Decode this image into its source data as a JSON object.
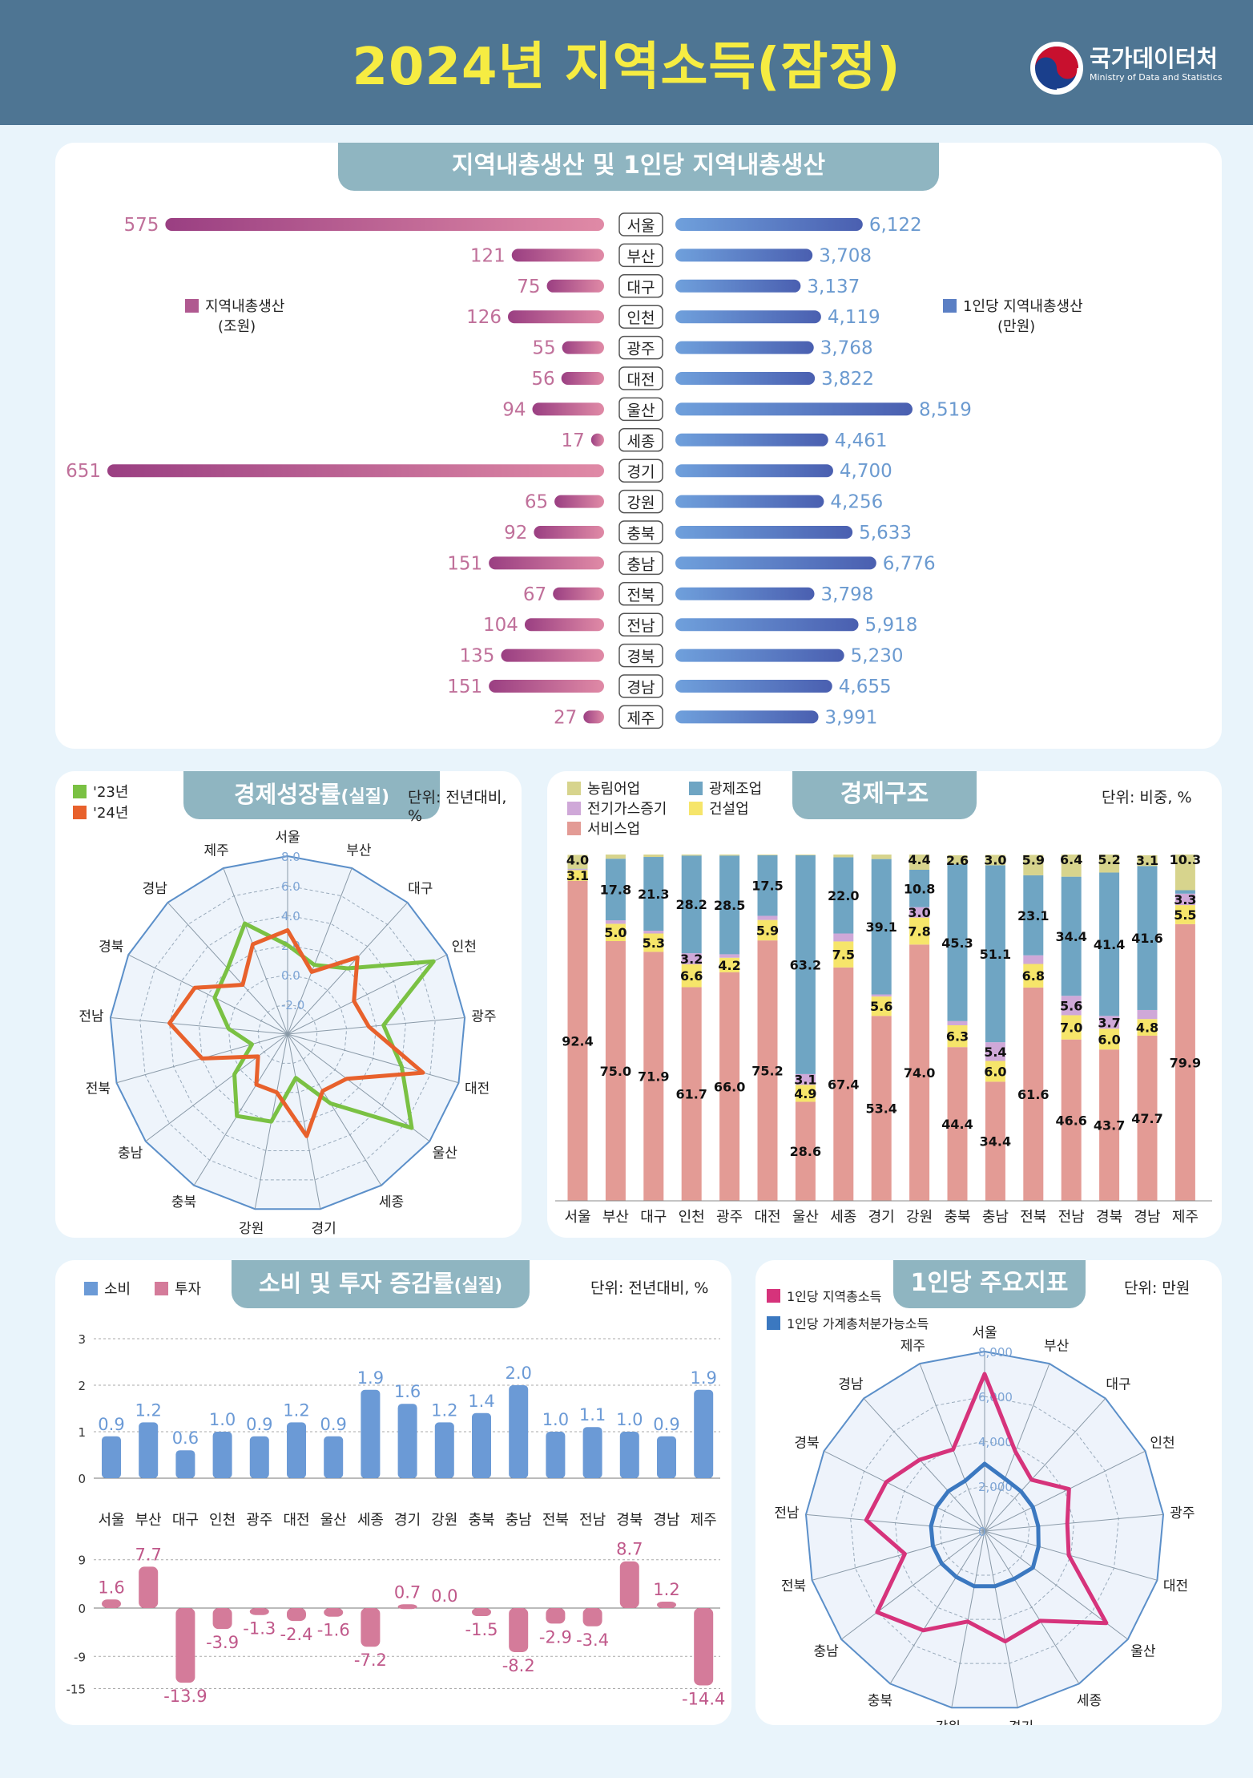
{
  "header": {
    "title": "2024년 지역소득(잠정)",
    "logo_name": "국가데이터처",
    "logo_sub": "Ministry of Data and Statistics"
  },
  "colors": {
    "header_bg": "#4e7593",
    "title": "#f6ec42",
    "pill": "#8fb5c1",
    "grdp": "#b05990",
    "grdp_text": "#c0709a",
    "per_capita": "#5b7fc4",
    "per_capita_text": "#6b9ad0",
    "green": "#7ac143",
    "orange": "#e8612c",
    "consumption": "#6b9ad6",
    "investment": "#d47b9a",
    "magenta": "#d6337b",
    "blue": "#3b78c0"
  },
  "panels": {
    "grdp": {
      "title": "지역내총생산 및 1인당 지역내총생산",
      "legend_left_1": "지역내총생산",
      "legend_left_2": "(조원)",
      "legend_right_1": "1인당 지역내총생산",
      "legend_right_2": "(만원)"
    },
    "growth": {
      "title": "경제성장률",
      "title_sub": "(실질)",
      "unit": "단위: 전년대비, %",
      "legend": [
        "'23년",
        "'24년"
      ]
    },
    "structure": {
      "title": "경제구조",
      "unit": "단위: 비중, %",
      "legend": [
        "농림어업",
        "광제조업",
        "전기가스증기",
        "건설업",
        "서비스업"
      ]
    },
    "cons": {
      "title": "소비 및 투자 증감률",
      "title_sub": "(실질)",
      "unit": "단위: 전년대비, %",
      "legend": [
        "소비",
        "투자"
      ]
    },
    "percap": {
      "title": "1인당 주요지표",
      "unit": "단위: 만원",
      "legend": [
        "1인당 지역총소득",
        "1인당 가계총처분가능소득"
      ]
    }
  },
  "chart_data": [
    {
      "type": "bar",
      "title": "지역내총생산 및 1인당 지역내총생산",
      "categories": [
        "서울",
        "부산",
        "대구",
        "인천",
        "광주",
        "대전",
        "울산",
        "세종",
        "경기",
        "강원",
        "충북",
        "충남",
        "전북",
        "전남",
        "경북",
        "경남",
        "제주"
      ],
      "series": [
        {
          "name": "지역내총생산 (조원)",
          "values": [
            575,
            121,
            75,
            126,
            55,
            56,
            94,
            17,
            651,
            65,
            92,
            151,
            67,
            104,
            135,
            151,
            27
          ]
        },
        {
          "name": "1인당 지역내총생산 (만원)",
          "values": [
            6122,
            3708,
            3137,
            4119,
            3768,
            3822,
            8519,
            4461,
            4700,
            4256,
            5633,
            6776,
            3798,
            5918,
            5230,
            4655,
            3991
          ]
        }
      ]
    },
    {
      "type": "radar",
      "title": "경제성장률",
      "categories": [
        "서울",
        "부산",
        "대구",
        "인천",
        "광주",
        "대전",
        "울산",
        "세종",
        "경기",
        "강원",
        "충북",
        "충남",
        "전북",
        "전남",
        "경북",
        "경남",
        "제주"
      ],
      "ticks": [
        "8.0",
        "6.0",
        "4.0",
        "2.0",
        "0.0",
        "-2.0"
      ],
      "range": [
        -4,
        8
      ],
      "series": [
        {
          "name": "'23년",
          "values": [
            2.0,
            1.0,
            2.0,
            7.0,
            2.5,
            4.0,
            6.5,
            1.5,
            -1.0,
            2.0,
            2.5,
            0.5,
            -1.5,
            0.0,
            1.5,
            2.0,
            4.0
          ]
        },
        {
          "name": "'24년",
          "values": [
            3.0,
            0.5,
            3.0,
            1.0,
            1.5,
            5.5,
            1.0,
            0.5,
            3.0,
            0.0,
            0.0,
            -1.5,
            2.0,
            4.0,
            3.0,
            0.5,
            2.5
          ]
        }
      ]
    },
    {
      "type": "bar",
      "stacked": true,
      "title": "경제구조",
      "categories": [
        "서울",
        "부산",
        "대구",
        "인천",
        "광주",
        "대전",
        "울산",
        "세종",
        "경기",
        "강원",
        "충북",
        "충남",
        "전북",
        "전남",
        "경북",
        "경남",
        "제주"
      ],
      "series": [
        {
          "name": "서비스업",
          "values": [
            92.4,
            75.0,
            71.9,
            61.7,
            66.0,
            75.2,
            28.6,
            67.4,
            53.4,
            74.0,
            44.4,
            34.4,
            61.6,
            46.6,
            43.7,
            47.7,
            79.9
          ]
        },
        {
          "name": "건설업",
          "values": [
            3.1,
            5.0,
            5.3,
            6.6,
            4.2,
            5.9,
            4.9,
            7.5,
            5.6,
            7.8,
            6.3,
            6.0,
            6.8,
            7.0,
            6.0,
            4.8,
            5.5
          ]
        },
        {
          "name": "전기가스증기",
          "values": [
            0.3,
            1.0,
            0.8,
            3.2,
            1.0,
            1.2,
            3.1,
            2.3,
            0.6,
            3.0,
            1.2,
            5.4,
            2.5,
            5.6,
            3.7,
            2.6,
            3.3
          ]
        },
        {
          "name": "광제조업",
          "values": [
            0.1,
            17.8,
            21.3,
            28.2,
            28.5,
            17.5,
            63.2,
            22.0,
            39.1,
            10.8,
            45.3,
            51.1,
            23.1,
            34.4,
            41.4,
            41.6,
            1.0
          ]
        },
        {
          "name": "농림어업",
          "values": [
            4.0,
            1.2,
            0.7,
            0.3,
            0.3,
            0.2,
            0.2,
            0.8,
            1.3,
            4.4,
            2.6,
            3.0,
            5.9,
            6.4,
            5.2,
            3.1,
            10.3
          ]
        }
      ],
      "labels": {
        "서비스업": [
          "92.4",
          "75.0",
          "71.9",
          "61.7",
          "66.0",
          "75.2",
          "28.6",
          "67.4",
          "53.4",
          "74.0",
          "44.4",
          "34.4",
          "61.6",
          "46.6",
          "43.7",
          "47.7",
          "79.9"
        ],
        "건설업": [
          "3.1",
          "5.0",
          "5.3",
          "6.6",
          "4.2",
          "5.9",
          "4.9",
          "7.5",
          "5.6",
          "7.8",
          "6.3",
          "6.0",
          "6.8",
          "7.0",
          "6.0",
          "4.8",
          "5.5"
        ],
        "전기가스증기": [
          "",
          "",
          "",
          "3.2",
          "",
          "",
          "3.1",
          "",
          "",
          "3.0",
          "",
          "5.4",
          "",
          "5.6",
          "3.7",
          "",
          "3.3"
        ],
        "광제조업": [
          "",
          "17.8",
          "21.3",
          "28.2",
          "28.5",
          "17.5",
          "63.2",
          "22.0",
          "39.1",
          "10.8",
          "45.3",
          "51.1",
          "23.1",
          "34.4",
          "41.4",
          "41.6",
          ""
        ],
        "농림어업": [
          "4.0",
          "",
          "",
          "",
          "",
          "",
          "",
          "",
          "",
          "4.4",
          "2.6",
          "3.0",
          "5.9",
          "6.4",
          "5.2",
          "3.1",
          "10.3"
        ]
      },
      "ylim": [
        0,
        100
      ]
    },
    {
      "type": "bar",
      "title": "소비 및 투자 증감률",
      "categories": [
        "서울",
        "부산",
        "대구",
        "인천",
        "광주",
        "대전",
        "울산",
        "세종",
        "경기",
        "강원",
        "충북",
        "충남",
        "전북",
        "전남",
        "경북",
        "경남",
        "제주"
      ],
      "series": [
        {
          "name": "소비",
          "values": [
            0.9,
            1.2,
            0.6,
            1.0,
            0.9,
            1.2,
            0.9,
            1.9,
            1.6,
            1.2,
            1.4,
            2.0,
            1.0,
            1.1,
            1.0,
            0.9,
            1.9
          ]
        },
        {
          "name": "투자",
          "values": [
            1.6,
            7.7,
            -13.9,
            -3.9,
            -1.3,
            -2.4,
            -1.6,
            -7.2,
            0.7,
            0.0,
            -1.5,
            -8.2,
            -2.9,
            -3.4,
            8.7,
            1.2,
            -14.4
          ]
        }
      ],
      "ylim_consumption": [
        0,
        3
      ],
      "ylim_investment": [
        -15,
        9
      ],
      "ticks_consumption": [
        "3",
        "2",
        "1",
        "0"
      ],
      "ticks_investment": [
        "9",
        "0",
        "-9",
        "-15"
      ]
    },
    {
      "type": "radar",
      "title": "1인당 주요지표",
      "categories": [
        "서울",
        "부산",
        "대구",
        "인천",
        "광주",
        "대전",
        "울산",
        "세종",
        "경기",
        "강원",
        "충북",
        "충남",
        "전북",
        "전남",
        "경북",
        "경남",
        "제주"
      ],
      "ticks": [
        "8,000",
        "6,000",
        "4,000",
        "2,000",
        "0"
      ],
      "range": [
        0,
        8000
      ],
      "series": [
        {
          "name": "1인당 지역총소득",
          "values": [
            7000,
            3800,
            3100,
            4200,
            3700,
            3900,
            6800,
            4700,
            5000,
            4100,
            5200,
            6000,
            3700,
            5300,
            4900,
            4300,
            3900
          ]
        },
        {
          "name": "1인당 가계총처분가능소득",
          "values": [
            3000,
            2500,
            2400,
            2400,
            2400,
            2500,
            2700,
            2500,
            2500,
            2500,
            2400,
            2400,
            2400,
            2400,
            2400,
            2400,
            2400
          ]
        }
      ]
    }
  ]
}
